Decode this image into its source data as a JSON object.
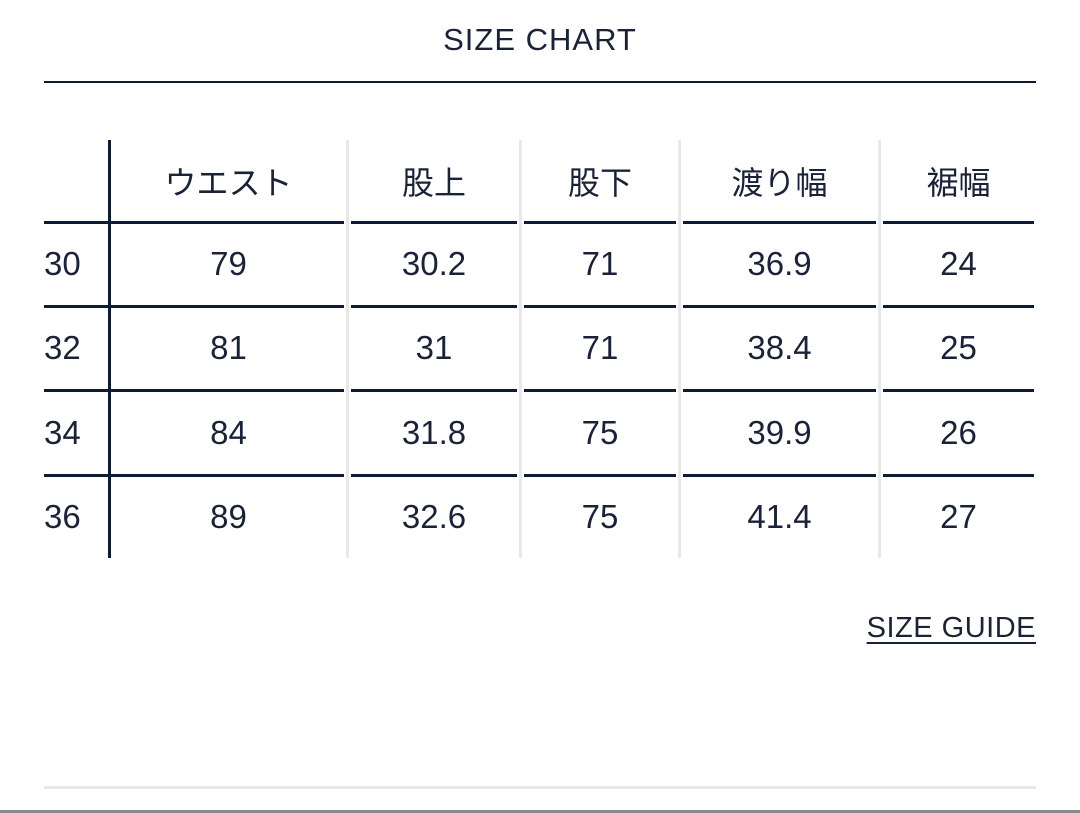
{
  "title": "SIZE CHART",
  "table": {
    "columns": [
      "",
      "ウエスト",
      "股上",
      "股下",
      "渡り幅",
      "裾幅"
    ],
    "rows": [
      [
        "30",
        "79",
        "30.2",
        "71",
        "36.9",
        "24"
      ],
      [
        "32",
        "81",
        "31",
        "71",
        "38.4",
        "25"
      ],
      [
        "34",
        "84",
        "31.8",
        "75",
        "39.9",
        "26"
      ],
      [
        "36",
        "89",
        "32.6",
        "75",
        "41.4",
        "27"
      ]
    ]
  },
  "size_guide_link": "SIZE GUIDE",
  "colors": {
    "text": "#1a2238",
    "rule": "#0f1a33",
    "divider": "#e8e8e8"
  }
}
